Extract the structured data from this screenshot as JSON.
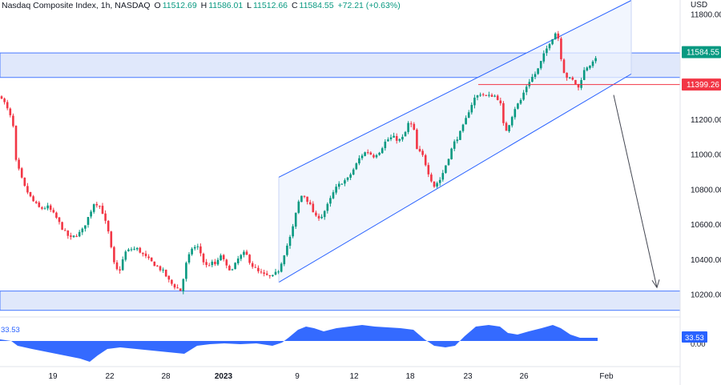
{
  "header": {
    "symbol": "Nasdaq Composite Index, 1h, NASDAQ",
    "o_label": "O",
    "o_value": "11512.69",
    "h_label": "H",
    "h_value": "11586.01",
    "l_label": "L",
    "l_value": "11512.66",
    "c_label": "C",
    "c_value": "11584.55",
    "change": "+72.21 (+0.63%)"
  },
  "currency": "USD",
  "colors": {
    "up": "#089981",
    "down": "#f23645",
    "zone_fill": "#dbe5fb",
    "zone_stroke": "#2962ff",
    "channel_fill": "#eef3fd",
    "channel_stroke": "#2962ff",
    "oscillator": "#2962ff",
    "level_line": "#f23645"
  },
  "price_labels": {
    "last": "11584.55",
    "level": "11399.26",
    "oscillator": "33.53",
    "oscillator_left": "33.53",
    "oscillator_zero": "0.00"
  },
  "chart_data": {
    "type": "candlestick",
    "title": "Nasdaq Composite Index, 1h, NASDAQ",
    "y_axis": {
      "ylim": [
        10150,
        11900
      ],
      "ticks": [
        10200,
        10400,
        10600,
        10800,
        11000,
        11200,
        11400,
        11600,
        11800
      ],
      "tick_labels": [
        "10200.00",
        "10400.00",
        "10600.00",
        "10800.00",
        "11000.00",
        "11200.00",
        "11400.00",
        "11600.00",
        "11800.00"
      ]
    },
    "x_axis": {
      "tick_labels": [
        "19",
        "22",
        "28",
        "2023",
        "9",
        "12",
        "18",
        "23",
        "26",
        "Feb"
      ]
    },
    "ohlc": {
      "first_close": 11330,
      "last": {
        "open": 11512.69,
        "high": 11586.01,
        "low": 11512.66,
        "close": 11584.55
      }
    },
    "resistance_zone": [
      11440,
      11580
    ],
    "support_zone": [
      10110,
      10220
    ],
    "horizontal_level": 11399.26,
    "channel": {
      "upper": [
        10870,
        11880
      ],
      "lower": [
        10270,
        11460
      ]
    },
    "projection_arrow": {
      "from": 11340,
      "to": 10240
    },
    "oscillator": {
      "last_value": 33.53,
      "zero_label": "0.00"
    }
  }
}
